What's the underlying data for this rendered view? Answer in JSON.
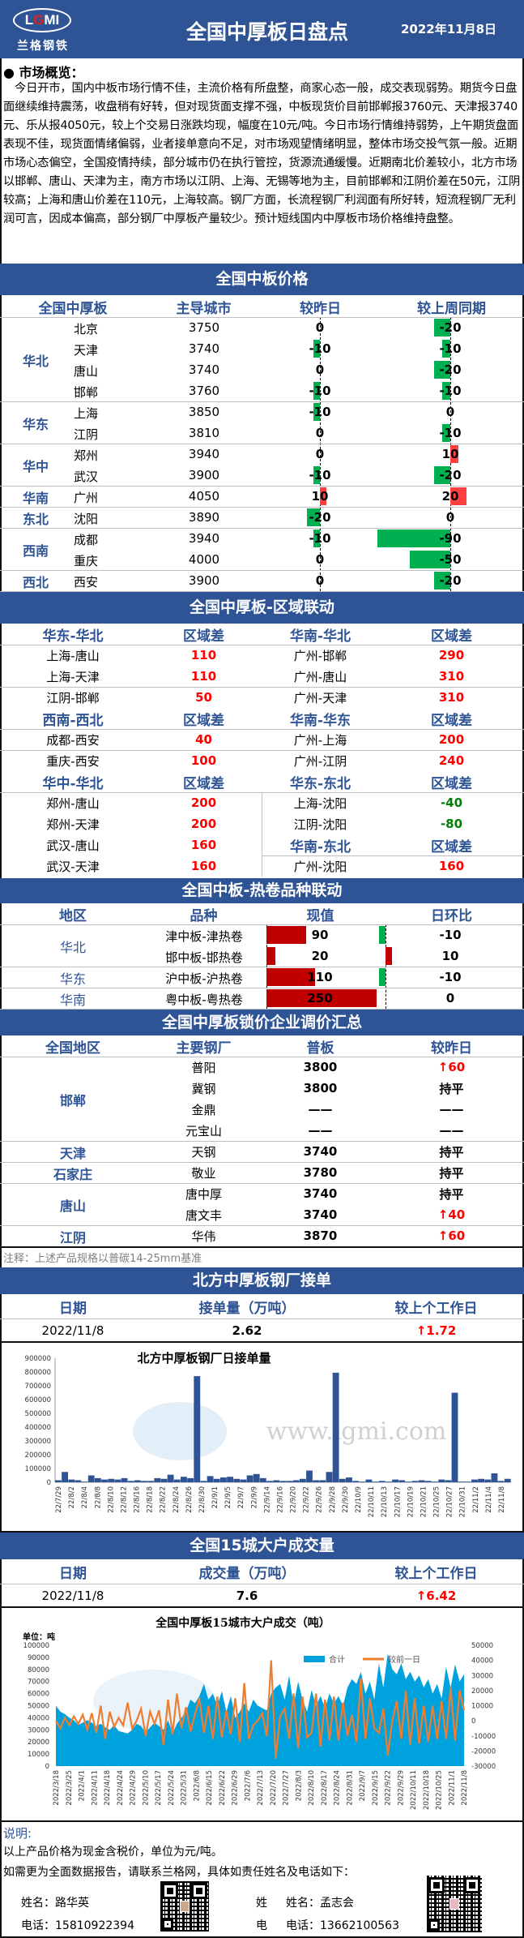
{
  "header": {
    "logo_text": "LGMI",
    "logo_cn": "兰格钢铁",
    "title": "全国中厚板日盘点",
    "date": "2022年11月8日"
  },
  "overview": {
    "heading": "● 市场概览：",
    "text": "今日开市，国内中板市场行情不佳，主流价格有所盘整，商家心态一般，成交表现弱势。期货今日盘面继续维持震荡，收盘稍有好转，但对现货面支撑不强，中板现货价目前邯郸报3760元、天津报3740元、乐从报4050元，较上个交易日涨跌均现，幅度在10元/吨。今日市场行情维持弱势，上午期货盘面表现不佳，现货面情绪偏弱，业者接单意向不足，对市场观望情绪明显，整体市场交投气氛一般。近期市场心态偏空，全国疫情持续，部分城市仍在执行管控，货源流通缓慢。近期南北价差较小，北方市场以邯郸、唐山、天津为主，南方市场以江阴、上海、无锡等地为主，目前邯郸和江阴价差在50元，江阴较高；上海和唐山价差在110元，上海较高。钢厂方面，长流程钢厂利润面有所好转，短流程钢厂无利润可言，因成本偏高，部分钢厂中厚板产量较少。预计短线国内中厚板市场价格维持盘整。"
  },
  "prices": {
    "title": "全国中板价格",
    "headers": [
      "全国中厚板",
      "主导城市",
      "较昨日",
      "较上周同期"
    ],
    "groups": [
      {
        "region": "华北",
        "rows": [
          [
            "北京",
            3750,
            0,
            -20
          ],
          [
            "天津",
            3740,
            -10,
            -10
          ],
          [
            "唐山",
            3740,
            0,
            -20
          ],
          [
            "邯郸",
            3760,
            -10,
            -10
          ]
        ]
      },
      {
        "region": "华东",
        "rows": [
          [
            "上海",
            3850,
            -10,
            0
          ],
          [
            "江阴",
            3810,
            0,
            -10
          ]
        ]
      },
      {
        "region": "华中",
        "rows": [
          [
            "郑州",
            3940,
            0,
            10
          ],
          [
            "武汉",
            3900,
            -10,
            -20
          ]
        ]
      },
      {
        "region": "华南",
        "rows": [
          [
            "广州",
            4050,
            10,
            20
          ]
        ]
      },
      {
        "region": "东北",
        "rows": [
          [
            "沈阳",
            3890,
            -20,
            0
          ]
        ]
      },
      {
        "region": "西南",
        "rows": [
          [
            "成都",
            3940,
            -10,
            -90
          ],
          [
            "重庆",
            4000,
            0,
            -50
          ]
        ]
      },
      {
        "region": "西北",
        "rows": [
          [
            "西安",
            3900,
            0,
            -20
          ]
        ]
      }
    ]
  },
  "spread": {
    "title": "全国中厚板-区域联动",
    "left": [
      {
        "head": "华东-华北",
        "col": "区域差",
        "rows": [
          [
            "上海-唐山",
            "110"
          ],
          [
            "上海-天津",
            "110"
          ],
          [
            "江阴-邯郸",
            "50"
          ]
        ]
      },
      {
        "head": "西南-西北",
        "col": "区域差",
        "rows": [
          [
            "成都-西安",
            "40"
          ],
          [
            "重庆-西安",
            "100"
          ]
        ]
      },
      {
        "head": "华中-华北",
        "col": "区域差",
        "rows": [
          [
            "郑州-唐山",
            "200"
          ],
          [
            "郑州-天津",
            "200"
          ],
          [
            "武汉-唐山",
            "160"
          ],
          [
            "武汉-天津",
            "160"
          ]
        ]
      }
    ],
    "right": [
      {
        "head": "华南-华北",
        "col": "区域差",
        "rows": [
          [
            "广州-邯郸",
            "290"
          ],
          [
            "广州-唐山",
            "310"
          ],
          [
            "广州-天津",
            "310"
          ]
        ]
      },
      {
        "head": "华南-华东",
        "col": "区域差",
        "rows": [
          [
            "广州-上海",
            "200"
          ],
          [
            "广州-江阴",
            "240"
          ]
        ]
      },
      {
        "head": "华东-东北",
        "col": "区域差",
        "rows": [
          [
            "上海-沈阳",
            "-40"
          ],
          [
            "江阴-沈阳",
            "-80"
          ]
        ]
      },
      {
        "head": "华南-东北",
        "col": "区域差",
        "rows": [
          [
            "广州-沈阳",
            "160"
          ]
        ]
      }
    ]
  },
  "coil": {
    "title": "全国中板-热卷品种联动",
    "headers": [
      "地区",
      "品种",
      "现值",
      "日环比"
    ],
    "rows": [
      [
        "华北",
        "津中板-津热卷",
        90,
        -10
      ],
      [
        "",
        "邯中板-邯热卷",
        20,
        10
      ],
      [
        "华东",
        "沪中板-沪热卷",
        110,
        -10
      ],
      [
        "华南",
        "粤中板-粤热卷",
        250,
        0
      ]
    ]
  },
  "lock": {
    "title": "全国中厚板锁价企业调价汇总",
    "headers": [
      "全国地区",
      "主要钢厂",
      "普板",
      "较昨日"
    ],
    "rows": [
      [
        "",
        "普阳",
        "3800",
        "↑60"
      ],
      [
        "邯郸",
        "冀钢",
        "3800",
        "持平"
      ],
      [
        "",
        "金鼎",
        "——",
        "——"
      ],
      [
        "",
        "元宝山",
        "——",
        "——"
      ],
      [
        "天津",
        "天钢",
        "3740",
        "持平"
      ],
      [
        "石家庄",
        "敬业",
        "3780",
        "持平"
      ],
      [
        "",
        "唐中厚",
        "3740",
        "持平"
      ],
      [
        "唐山",
        "唐文丰",
        "3740",
        "↑40"
      ],
      [
        "江阴",
        "华伟",
        "3870",
        "↑60"
      ]
    ],
    "note": "注释：上述产品规格以普碳14-25mm基准"
  },
  "orders": {
    "title": "北方中厚板钢厂接单",
    "headers": [
      "日期",
      "接单量（万吨）",
      "较上个工作日"
    ],
    "date": "2022/11/8",
    "value": "2.62",
    "change": "↑1.72"
  },
  "volume": {
    "title": "全国15城大户成交量",
    "headers": [
      "日期",
      "成交量（万吨）",
      "较上个工作日"
    ],
    "date": "2022/11/8",
    "value": "7.6",
    "change": "↑6.42"
  },
  "chart_data": [
    {
      "type": "bar",
      "title": "北方中厚板钢厂日接单量",
      "ylim": [
        0,
        900000
      ],
      "y_ticks": [
        0,
        100000,
        200000,
        300000,
        400000,
        500000,
        600000,
        700000,
        800000,
        900000
      ],
      "color": "#2f5496",
      "watermark": "www.lgmi.com",
      "x_tick_labels": [
        "22/7/29",
        "22/8/2",
        "22/8/4",
        "22/8/8",
        "22/8/10",
        "22/8/12",
        "22/8/16",
        "22/8/18",
        "22/8/22",
        "22/8/24",
        "22/8/26",
        "22/8/30",
        "22/9/1",
        "22/9/5",
        "22/9/7",
        "22/9/9",
        "22/9/14",
        "22/9/16",
        "22/9/20",
        "22/9/22",
        "22/9/26",
        "22/9/28",
        "22/9/30",
        "22/10/9",
        "22/10/11",
        "22/10/13",
        "22/10/17",
        "22/10/19",
        "22/10/21",
        "22/10/25",
        "22/10/27",
        "22/10/31",
        "22/11/2",
        "22/11/4",
        "22/11/8"
      ],
      "values": [
        15000,
        75000,
        20000,
        15000,
        5000,
        50000,
        30000,
        20000,
        25000,
        20000,
        30000,
        10000,
        15000,
        10000,
        10000,
        30000,
        25000,
        55000,
        20000,
        40000,
        30000,
        770000,
        10000,
        45000,
        25000,
        35000,
        40000,
        25000,
        20000,
        50000,
        60000,
        30000,
        10000,
        15000,
        10000,
        10000,
        15000,
        25000,
        85000,
        15000,
        15000,
        75000,
        795000,
        25000,
        35000,
        10000,
        5000,
        20000,
        5000,
        10000,
        5000,
        20000,
        15000,
        5000,
        10000,
        15000,
        10000,
        5000,
        20000,
        15000,
        650000,
        5000,
        5000,
        20000,
        25000,
        20000,
        65000,
        10000,
        25000
      ]
    },
    {
      "type": "area+line",
      "title": "全国中厚板15城市大户成交（吨）",
      "unit_label": "单位：吨",
      "ylim": [
        0,
        100000
      ],
      "y2lim": [
        -30000,
        50000
      ],
      "y_ticks": [
        0,
        10000,
        20000,
        30000,
        40000,
        50000,
        60000,
        70000,
        80000,
        90000,
        100000
      ],
      "y2_ticks": [
        -30000,
        -20000,
        -10000,
        0,
        10000,
        20000,
        30000,
        40000,
        50000
      ],
      "legend_position": "top-right",
      "x_tick_labels": [
        "2022/3/18",
        "2022/3/25",
        "2022/4/1",
        "2022/4/11",
        "2022/4/18",
        "2022/4/24",
        "2022/4/29",
        "2022/5/10",
        "2022/5/17",
        "2022/5/24",
        "2022/5/31",
        "2022/6/8",
        "2022/6/15",
        "2022/6/22",
        "2022/6/29",
        "2022/7/6",
        "2022/7/13",
        "2022/7/20",
        "2022/7/27",
        "2022/8/3",
        "2022/8/10",
        "2022/8/17",
        "2022/8/24",
        "2022/8/31",
        "2022/9/7",
        "2022/9/15",
        "2022/9/22",
        "2022/9/29",
        "2022/10/11",
        "2022/10/18",
        "2022/10/25",
        "2022/11/1",
        "2022/11/8"
      ],
      "series": [
        {
          "name": "合计",
          "type": "area",
          "color": "#00a2de",
          "values": [
            50000,
            45000,
            43000,
            40000,
            38000,
            34000,
            36000,
            38000,
            36000,
            33000,
            35000,
            32000,
            30000,
            34000,
            29000,
            28000,
            27000,
            30000,
            35000,
            33000,
            28000,
            32000,
            36000,
            33000,
            30000,
            38000,
            27000,
            35000,
            40000,
            45000,
            55000,
            52000,
            58000,
            68000,
            55000,
            60000,
            50000,
            62000,
            45000,
            58000,
            40000,
            45000,
            52000,
            45000,
            55000,
            50000,
            48000,
            46000,
            60000,
            65000,
            68000,
            55000,
            75000,
            50000,
            70000,
            55000,
            45000,
            63000,
            50000,
            58000,
            48000,
            60000,
            52000,
            58000,
            50000,
            65000,
            72000,
            68000,
            78000,
            60000,
            70000,
            55000,
            85000,
            65000,
            93000,
            80000,
            76000,
            85000,
            72000,
            78000,
            70000,
            75000,
            65000,
            72000,
            60000,
            68000,
            56000,
            82000,
            65000,
            84000,
            70000,
            76000
          ]
        },
        {
          "name": "较前一日",
          "type": "line",
          "color": "#ed7d31",
          "values": [
            0,
            -5000,
            2000,
            -3000,
            3000,
            -2000,
            4000,
            -6000,
            5000,
            -8000,
            10000,
            -12000,
            6000,
            -4000,
            2000,
            -3000,
            12000,
            -5000,
            0,
            8000,
            -10000,
            6000,
            -2000,
            7000,
            -16000,
            14000,
            -9000,
            18000,
            -5000,
            9000,
            -7000,
            4000,
            15000,
            -8000,
            10000,
            -12000,
            16000,
            -11000,
            7000,
            -9000,
            15000,
            -14000,
            25000,
            -12000,
            -3000,
            0,
            5000,
            -10000,
            40000,
            -25000,
            3000,
            8000,
            -12000,
            18000,
            -18000,
            16000,
            -11000,
            -8000,
            18000,
            -17000,
            14000,
            -13000,
            16000,
            -13000,
            12000,
            -10000,
            4000,
            -14000,
            28000,
            -12000,
            15000,
            -5000,
            -8000,
            8000,
            -23000,
            0,
            13000,
            -12000,
            20000,
            -16000,
            15000,
            -15000,
            10000,
            -14000,
            10000,
            -12000,
            13000,
            -12000,
            22000,
            -13000,
            20000,
            7000
          ]
        }
      ]
    }
  ],
  "footer": {
    "heading": "说明:",
    "line1": "以上产品价格为现金含税价，单位为元/吨。",
    "line2": "如需更为全面数据报告，请联系兰格网，具体如责任姓名及电话如下：",
    "contacts": [
      {
        "name_label": "姓名：",
        "name": "路华英",
        "phone_label": "电话：",
        "phone": "15810922394"
      },
      {
        "name_label": "姓名：",
        "name": "孟志会",
        "phone_label": "电话：",
        "phone": "13662100563"
      }
    ],
    "clipped": [
      "姓",
      "电"
    ]
  }
}
